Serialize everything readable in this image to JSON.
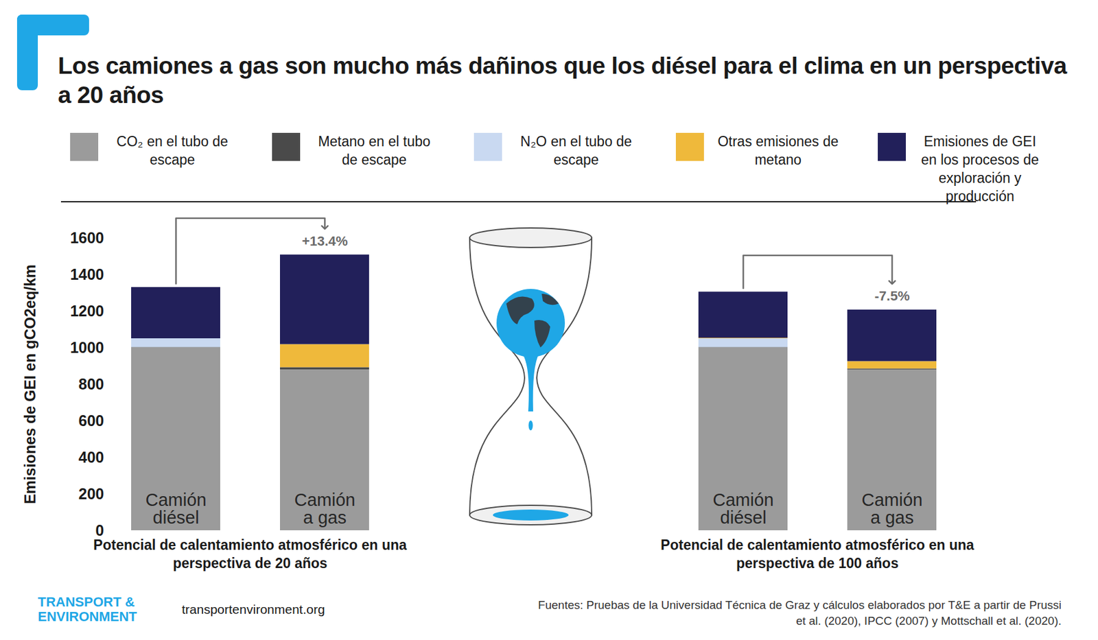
{
  "title": "Los camiones a gas son mucho más dañinos que los diésel para el clima en un perspectiva a 20 años",
  "legend": "top",
  "brand": "TRANSPORT & ENVIRONMENT",
  "website": "transportenvironment.org",
  "source": "Fuentes: Pruebas de la Universidad Técnica de Graz y cálculos elaborados por T&E a partir de Prussi et al. (2020), IPCC (2007) y Mottschall et al. (2020).",
  "chart_data": [
    {
      "type": "bar",
      "stacked": true,
      "x_label": "Potencial de calentamiento atmosférico en una perspectiva de 20 años",
      "y_label": "Emisiones de GEI en gCO2eq/km",
      "categories": [
        "Camión diésel",
        "Camión a gas"
      ],
      "series": [
        {
          "name": "CO₂ en el tubo de escape",
          "color": "#9b9b9b",
          "values": [
            1000,
            880
          ]
        },
        {
          "name": "Metano en el tubo de escape",
          "color": "#4a4a4a",
          "values": [
            2,
            12
          ]
        },
        {
          "name": "N₂O en el tubo de escape",
          "color": "#c9d9f1",
          "values": [
            48,
            0
          ]
        },
        {
          "name": "Otras emisiones de metano",
          "color": "#efb93b",
          "values": [
            0,
            126
          ]
        },
        {
          "name": "Emisiones de GEI en los procesos de exploración y producción",
          "color": "#22205a",
          "values": [
            280,
            490
          ]
        }
      ],
      "ylim": [
        0,
        1600
      ],
      "yticks": [
        0,
        200,
        400,
        600,
        800,
        1000,
        1200,
        1400,
        1600
      ],
      "tick_labels": "y",
      "annotations": [
        {
          "text": "+13.4%",
          "from": "Camión diésel",
          "to": "Camión a gas"
        }
      ]
    },
    {
      "type": "bar",
      "stacked": true,
      "x_label": "Potencial de calentamiento atmosférico en una perspectiva de 100 años",
      "categories": [
        "Camión diésel",
        "Camión a gas"
      ],
      "series": [
        {
          "name": "CO₂ en el tubo de escape",
          "color": "#9b9b9b",
          "values": [
            1000,
            880
          ]
        },
        {
          "name": "Metano en el tubo de escape",
          "color": "#4a4a4a",
          "values": [
            2,
            5
          ]
        },
        {
          "name": "N₂O en el tubo de escape",
          "color": "#c9d9f1",
          "values": [
            48,
            0
          ]
        },
        {
          "name": "Otras emisiones de metano",
          "color": "#efb93b",
          "values": [
            3,
            40
          ]
        },
        {
          "name": "Emisiones de GEI en los procesos de exploración y producción",
          "color": "#22205a",
          "values": [
            252,
            282
          ]
        }
      ],
      "ylim": [
        0,
        1600
      ],
      "tick_labels": false,
      "annotations": [
        {
          "text": "-7.5%",
          "from": "Camión diésel",
          "to": "Camión a gas"
        }
      ]
    }
  ]
}
